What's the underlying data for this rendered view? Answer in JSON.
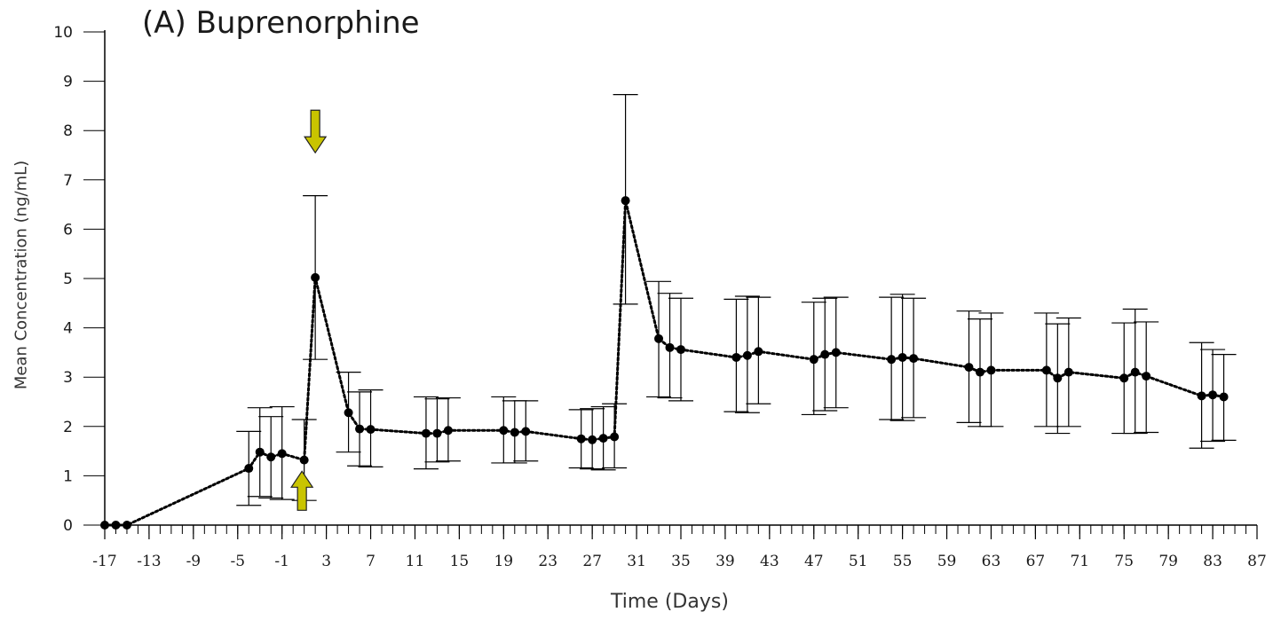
{
  "chart_data": {
    "type": "line",
    "title": "(A) Buprenorphine",
    "xlabel": "Time (Days)",
    "ylabel": "Mean Concentration (ng/mL)",
    "xlim": [
      -17,
      87
    ],
    "ylim": [
      0,
      10
    ],
    "x_ticks": [
      -17,
      -13,
      -9,
      -5,
      -1,
      3,
      7,
      11,
      15,
      19,
      23,
      27,
      31,
      35,
      39,
      43,
      47,
      51,
      55,
      59,
      63,
      67,
      71,
      75,
      79,
      83,
      87
    ],
    "y_ticks": [
      0,
      1,
      2,
      3,
      4,
      5,
      6,
      7,
      8,
      9,
      10
    ],
    "grid": false,
    "legend": "none",
    "marker_color": "#000000",
    "arrow_color": "#c9c400",
    "series": [
      {
        "points": [
          {
            "x": -17,
            "y": 0
          },
          {
            "x": -16,
            "y": 0
          },
          {
            "x": -15,
            "y": 0
          },
          {
            "x": -4,
            "y": 1.15,
            "lo": 0.4,
            "hi": 1.9
          },
          {
            "x": -3,
            "y": 1.48,
            "lo": 0.58,
            "hi": 2.38
          },
          {
            "x": -2,
            "y": 1.38,
            "lo": 0.55,
            "hi": 2.2
          },
          {
            "x": -1,
            "y": 1.45,
            "lo": 0.52,
            "hi": 2.4
          },
          {
            "x": 1,
            "y": 1.32,
            "lo": 0.5,
            "hi": 2.14
          },
          {
            "x": 2,
            "y": 5.02,
            "lo": 3.36,
            "hi": 6.68
          },
          {
            "x": 5,
            "y": 2.28,
            "lo": 1.48,
            "hi": 3.1
          },
          {
            "x": 6,
            "y": 1.95,
            "lo": 1.2,
            "hi": 2.7
          },
          {
            "x": 7,
            "y": 1.94,
            "lo": 1.18,
            "hi": 2.74
          },
          {
            "x": 12,
            "y": 1.86,
            "lo": 1.14,
            "hi": 2.6
          },
          {
            "x": 13,
            "y": 1.86,
            "lo": 1.28,
            "hi": 2.56
          },
          {
            "x": 14,
            "y": 1.92,
            "lo": 1.3,
            "hi": 2.58
          },
          {
            "x": 19,
            "y": 1.92,
            "lo": 1.26,
            "hi": 2.6
          },
          {
            "x": 20,
            "y": 1.88,
            "lo": 1.26,
            "hi": 2.52
          },
          {
            "x": 21,
            "y": 1.9,
            "lo": 1.3,
            "hi": 2.52
          },
          {
            "x": 26,
            "y": 1.75,
            "lo": 1.16,
            "hi": 2.34
          },
          {
            "x": 27,
            "y": 1.73,
            "lo": 1.14,
            "hi": 2.36
          },
          {
            "x": 28,
            "y": 1.76,
            "lo": 1.12,
            "hi": 2.4
          },
          {
            "x": 29,
            "y": 1.79,
            "lo": 1.16,
            "hi": 2.46
          },
          {
            "x": 30,
            "y": 6.58,
            "lo": 4.48,
            "hi": 8.73
          },
          {
            "x": 33,
            "y": 3.78,
            "lo": 2.6,
            "hi": 4.94
          },
          {
            "x": 34,
            "y": 3.6,
            "lo": 2.58,
            "hi": 4.7
          },
          {
            "x": 35,
            "y": 3.56,
            "lo": 2.52,
            "hi": 4.6
          },
          {
            "x": 40,
            "y": 3.4,
            "lo": 2.3,
            "hi": 4.58
          },
          {
            "x": 41,
            "y": 3.44,
            "lo": 2.28,
            "hi": 4.64
          },
          {
            "x": 42,
            "y": 3.52,
            "lo": 2.46,
            "hi": 4.62
          },
          {
            "x": 47,
            "y": 3.36,
            "lo": 2.24,
            "hi": 4.52
          },
          {
            "x": 48,
            "y": 3.46,
            "lo": 2.32,
            "hi": 4.6
          },
          {
            "x": 49,
            "y": 3.5,
            "lo": 2.38,
            "hi": 4.62
          },
          {
            "x": 54,
            "y": 3.36,
            "lo": 2.14,
            "hi": 4.62
          },
          {
            "x": 55,
            "y": 3.4,
            "lo": 2.12,
            "hi": 4.68
          },
          {
            "x": 56,
            "y": 3.38,
            "lo": 2.18,
            "hi": 4.6
          },
          {
            "x": 61,
            "y": 3.2,
            "lo": 2.08,
            "hi": 4.34
          },
          {
            "x": 62,
            "y": 3.1,
            "lo": 2.0,
            "hi": 4.18
          },
          {
            "x": 63,
            "y": 3.14,
            "lo": 2.0,
            "hi": 4.3
          },
          {
            "x": 68,
            "y": 3.14,
            "lo": 2.0,
            "hi": 4.3
          },
          {
            "x": 69,
            "y": 2.98,
            "lo": 1.86,
            "hi": 4.08
          },
          {
            "x": 70,
            "y": 3.1,
            "lo": 2.0,
            "hi": 4.2
          },
          {
            "x": 75,
            "y": 2.98,
            "lo": 1.86,
            "hi": 4.1
          },
          {
            "x": 76,
            "y": 3.1,
            "lo": 1.86,
            "hi": 4.38
          },
          {
            "x": 77,
            "y": 3.02,
            "lo": 1.88,
            "hi": 4.12
          },
          {
            "x": 82,
            "y": 2.62,
            "lo": 1.56,
            "hi": 3.7
          },
          {
            "x": 83,
            "y": 2.64,
            "lo": 1.7,
            "hi": 3.56
          },
          {
            "x": 84,
            "y": 2.6,
            "lo": 1.72,
            "hi": 3.46
          }
        ]
      }
    ],
    "annotations": [
      {
        "type": "arrow-down",
        "x": 2,
        "y": 7.55
      },
      {
        "type": "arrow-up",
        "x": 0.8,
        "y": 0.3
      }
    ]
  }
}
